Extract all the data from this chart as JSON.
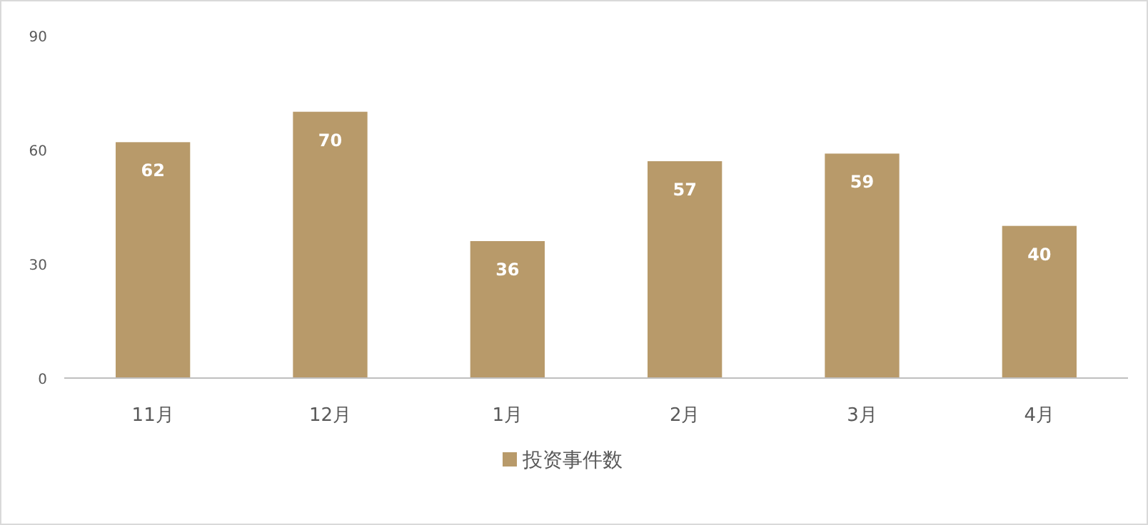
{
  "chart_data": {
    "type": "bar",
    "categories": [
      "11月",
      "12月",
      "1月",
      "2月",
      "3月",
      "4月"
    ],
    "series": [
      {
        "name": "投资事件数",
        "color": "#b89a6a",
        "values": [
          62,
          70,
          36,
          57,
          59,
          40
        ]
      }
    ],
    "ylim": [
      0,
      90
    ],
    "yticks": [
      0,
      30,
      60,
      90
    ],
    "data_labels": true,
    "legend": "bottom"
  }
}
